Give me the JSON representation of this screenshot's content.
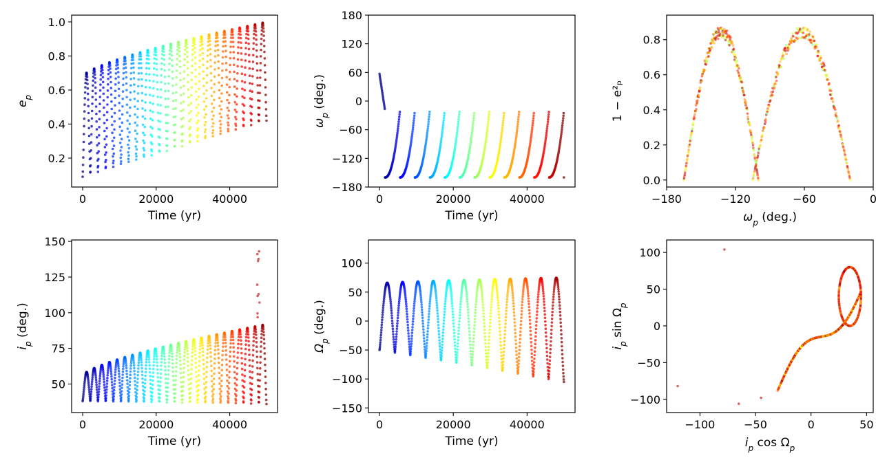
{
  "figure": {
    "layout": "2x3 grid",
    "colormap": "jet (time-coded, blue = early, dark red = late)"
  },
  "chart_data": [
    {
      "id": "ep_vs_time",
      "type": "scatter",
      "xlabel": "Time (yr)",
      "ylabel_base": "e",
      "ylabel_sub": "p",
      "ylabel_suffix": "",
      "xlim": [
        -3000,
        53000
      ],
      "ylim": [
        0.03,
        1.04
      ],
      "xticks": [
        0,
        20000,
        40000
      ],
      "xtick_labels": [
        "0",
        "20000",
        "40000"
      ],
      "yticks": [
        0.2,
        0.4,
        0.6,
        0.8,
        1.0
      ],
      "ytick_labels": [
        "0.2",
        "0.4",
        "0.6",
        "0.8",
        "1.0"
      ],
      "series": {
        "kind": "oscillation",
        "t_range": [
          0,
          50000
        ],
        "n_cycles": 24,
        "min_start": 0.09,
        "min_end": 0.42,
        "max_start": 0.68,
        "max_end": 1.0
      }
    },
    {
      "id": "omega_vs_time",
      "type": "scatter",
      "xlabel": "Time (yr)",
      "ylabel_base": "ω",
      "ylabel_sub": "p",
      "ylabel_suffix": " (deg.)",
      "xlim": [
        -3000,
        53000
      ],
      "ylim": [
        -180,
        180
      ],
      "xticks": [
        0,
        20000,
        40000
      ],
      "xtick_labels": [
        "0",
        "20000",
        "40000"
      ],
      "yticks": [
        -180,
        -120,
        -60,
        0,
        60,
        120,
        180
      ],
      "ytick_labels": [
        "−180",
        "−120",
        "−60",
        "0",
        "60",
        "120",
        "180"
      ],
      "series": {
        "kind": "sawtooth",
        "t_range": [
          0,
          50000
        ],
        "start": 57,
        "first_drop": -20,
        "baseline": -160,
        "peak": -20,
        "n_cycles": 12
      }
    },
    {
      "id": "one_minus_e2_vs_omega",
      "type": "scatter",
      "xlabel_base": "ω",
      "xlabel_sub": "p",
      "xlabel_suffix": " (deg.)",
      "ylabel": "1 − e²ₚ",
      "xlim": [
        -180,
        0
      ],
      "ylim": [
        -0.04,
        0.94
      ],
      "xticks": [
        -180,
        -120,
        -60,
        0
      ],
      "xtick_labels": [
        "−180",
        "−120",
        "−60",
        "0"
      ],
      "yticks": [
        0.0,
        0.2,
        0.4,
        0.6,
        0.8
      ],
      "ytick_labels": [
        "0.0",
        "0.2",
        "0.4",
        "0.6",
        "0.8"
      ],
      "series": {
        "kind": "double_arch",
        "arches": [
          [
            -165,
            -100
          ],
          [
            -105,
            -20
          ]
        ],
        "peak": 0.88
      }
    },
    {
      "id": "ip_vs_time",
      "type": "scatter",
      "xlabel": "Time (yr)",
      "ylabel_base": "i",
      "ylabel_sub": "p",
      "ylabel_suffix": " (deg.)",
      "xlim": [
        -3000,
        53000
      ],
      "ylim": [
        30,
        151
      ],
      "xticks": [
        0,
        20000,
        40000
      ],
      "xtick_labels": [
        "0",
        "20000",
        "40000"
      ],
      "yticks": [
        50,
        75,
        100,
        125,
        150
      ],
      "ytick_labels": [
        "50",
        "75",
        "100",
        "125",
        "150"
      ],
      "series": {
        "kind": "oscillation",
        "t_range": [
          0,
          50000
        ],
        "n_cycles": 24,
        "min_start": 38,
        "min_end": 36,
        "max_start": 56,
        "max_end": 92,
        "outlier_max": 145
      }
    },
    {
      "id": "Omega_vs_time",
      "type": "scatter",
      "xlabel": "Time (yr)",
      "ylabel_base": "Ω",
      "ylabel_sub": "p",
      "ylabel_suffix": " (deg.)",
      "xlim": [
        -3000,
        53000
      ],
      "ylim": [
        -158,
        140
      ],
      "xticks": [
        0,
        20000,
        40000
      ],
      "xtick_labels": [
        "0",
        "20000",
        "40000"
      ],
      "yticks": [
        -150,
        -100,
        -50,
        0,
        50,
        100
      ],
      "ytick_labels": [
        "−150",
        "−100",
        "−50",
        "0",
        "50",
        "100"
      ],
      "series": {
        "kind": "oscillation",
        "t_range": [
          0,
          50000
        ],
        "n_cycles": 12,
        "min_start": -50,
        "min_end": -105,
        "max_start": 65,
        "max_end": 75
      }
    },
    {
      "id": "ip_sin_vs_cos",
      "type": "scatter",
      "xlabel_base": "i",
      "xlabel_sub": "p",
      "xlabel_mid": " cos Ω",
      "xlabel_sub2": "p",
      "ylabel_base": "i",
      "ylabel_sub": "p",
      "ylabel_mid": " sin Ω",
      "ylabel_sub2": "p",
      "xlim": [
        -130,
        56
      ],
      "ylim": [
        -118,
        117
      ],
      "xticks": [
        -100,
        -50,
        0,
        50
      ],
      "xtick_labels": [
        "−100",
        "−50",
        "0",
        "50"
      ],
      "yticks": [
        -100,
        -50,
        0,
        50,
        100
      ],
      "ytick_labels": [
        "−100",
        "−50",
        "0",
        "50",
        "100"
      ],
      "series": {
        "kind": "loop_curve",
        "tip": [
          -30,
          -88
        ],
        "loops_center": [
          35,
          40
        ]
      }
    }
  ]
}
